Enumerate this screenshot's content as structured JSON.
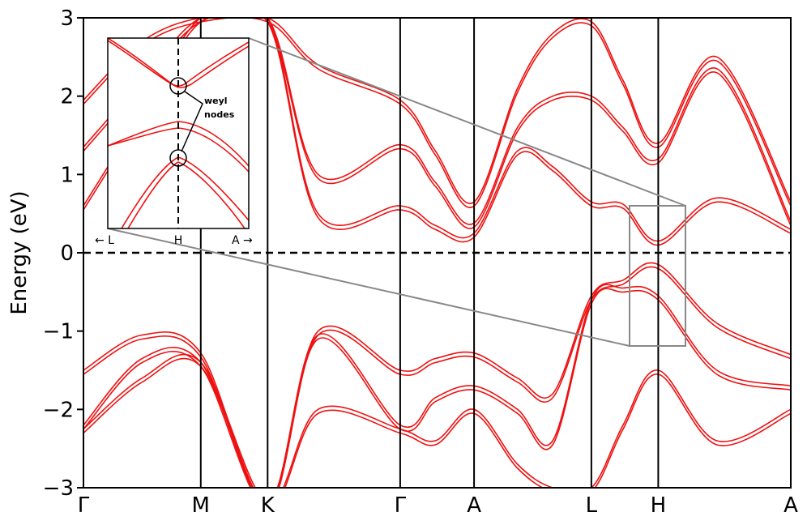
{
  "chart_data": {
    "type": "line",
    "title": "",
    "xlabel": "",
    "ylabel": "Energy (eV)",
    "ylim": [
      -3,
      3
    ],
    "yticks": [
      "−3",
      "−2",
      "−1",
      "0",
      "1",
      "2",
      "3"
    ],
    "ytick_values": [
      -3,
      -2,
      -1,
      0,
      1,
      2,
      3
    ],
    "kpoints": [
      "Γ",
      "M",
      "K",
      "Γ",
      "A",
      "L",
      "H",
      "A"
    ],
    "kpoint_x": [
      0,
      1,
      1.57,
      2.7,
      3.33,
      4.33,
      4.9,
      6.03
    ],
    "fermi_level": 0,
    "band_color": "#ee1111",
    "bands": [
      {
        "name": "",
        "x": [
          0,
          0.5,
          1,
          1.57,
          2.0,
          2.7,
          3.0,
          3.33,
          3.7,
          4.0,
          4.33,
          4.6,
          4.9,
          5.4,
          6.03
        ],
        "values": [
          1.95,
          2.7,
          3.0,
          3.0,
          2.4,
          1.95,
          1.3,
          0.65,
          2.1,
          2.8,
          2.95,
          2.2,
          1.4,
          2.5,
          0.65
        ]
      },
      {
        "name": "",
        "x": [
          0,
          0.5,
          1,
          1.57,
          2.0,
          2.7,
          3.0,
          3.33,
          3.7,
          4.0,
          4.33,
          4.6,
          4.9,
          5.4,
          6.03
        ],
        "values": [
          1.35,
          2.2,
          3.0,
          3.0,
          1.0,
          1.38,
          0.9,
          0.38,
          1.6,
          2.0,
          2.0,
          1.6,
          1.2,
          2.35,
          0.4
        ]
      },
      {
        "name": "",
        "x": [
          0,
          0.5,
          1,
          1.57,
          2.0,
          2.7,
          3.0,
          3.33,
          3.7,
          4.0,
          4.33,
          4.6,
          4.9,
          5.4,
          6.03
        ],
        "values": [
          0.6,
          1.8,
          3.0,
          3.0,
          0.5,
          0.6,
          0.35,
          0.25,
          1.3,
          1.1,
          0.65,
          0.62,
          0.15,
          0.7,
          0.3
        ]
      },
      {
        "name": "",
        "x": [
          0,
          0.5,
          1,
          1.57,
          2.0,
          2.7,
          3.0,
          3.33,
          3.7,
          4.0,
          4.33,
          4.6,
          4.9,
          5.4,
          6.03
        ],
        "values": [
          -1.5,
          -1.05,
          -1.28,
          -3.2,
          -1.0,
          -1.5,
          -1.35,
          -1.28,
          -1.6,
          -1.8,
          -0.55,
          -0.35,
          -0.15,
          -0.9,
          -1.3
        ]
      },
      {
        "name": "",
        "x": [
          0,
          0.5,
          1,
          1.57,
          2.0,
          2.7,
          3.0,
          3.33,
          3.7,
          4.0,
          4.33,
          4.6,
          4.9,
          5.4,
          6.03
        ],
        "values": [
          -2.2,
          -1.35,
          -1.4,
          -3.2,
          -1.05,
          -2.2,
          -1.85,
          -1.7,
          -2.0,
          -2.4,
          -0.6,
          -0.45,
          -0.55,
          -1.5,
          -1.7
        ]
      },
      {
        "name": "",
        "x": [
          0,
          0.5,
          1,
          1.57,
          2.0,
          2.7,
          3.0,
          3.33,
          3.7,
          4.0,
          4.33,
          4.6,
          4.9,
          5.4,
          6.03
        ],
        "values": [
          -2.25,
          -1.6,
          -1.4,
          -3.2,
          -2.0,
          -2.25,
          -2.4,
          -2.0,
          -2.7,
          -3.0,
          -3.0,
          -2.2,
          -1.5,
          -2.4,
          -2.0
        ]
      }
    ],
    "inset": {
      "kpoints": [
        "← L",
        "H",
        "A →"
      ],
      "annotation": [
        "weyl",
        "nodes"
      ]
    }
  }
}
